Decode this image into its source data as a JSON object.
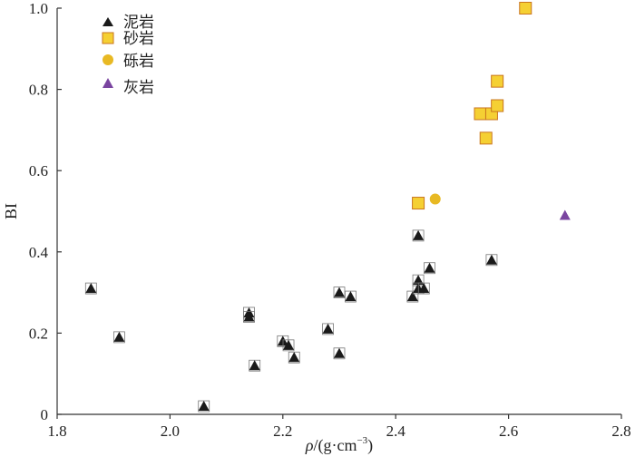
{
  "chart_data": {
    "type": "scatter",
    "title": "",
    "xlabel_main": "ρ",
    "xlabel_unit": "/(g·cm",
    "xlabel_exp": "−3",
    "xlabel_close": ")",
    "ylabel": "BI",
    "xlim": [
      1.8,
      2.8
    ],
    "ylim": [
      0,
      1.0
    ],
    "x_ticks": [
      "1.8",
      "2.0",
      "2.2",
      "2.4",
      "2.6",
      "2.8"
    ],
    "y_ticks": [
      "0",
      "0.2",
      "0.4",
      "0.6",
      "0.8",
      "1.0"
    ],
    "grid": false,
    "legend_position": "top-left",
    "series": [
      {
        "name": "泥岩",
        "marker": "triangle",
        "color": "#1a1a1a",
        "points": [
          [
            1.86,
            0.31
          ],
          [
            1.91,
            0.19
          ],
          [
            2.06,
            0.02
          ],
          [
            2.14,
            0.25
          ],
          [
            2.14,
            0.24
          ],
          [
            2.15,
            0.12
          ],
          [
            2.2,
            0.18
          ],
          [
            2.21,
            0.17
          ],
          [
            2.22,
            0.14
          ],
          [
            2.28,
            0.21
          ],
          [
            2.3,
            0.15
          ],
          [
            2.3,
            0.3
          ],
          [
            2.32,
            0.29
          ],
          [
            2.43,
            0.29
          ],
          [
            2.44,
            0.33
          ],
          [
            2.44,
            0.31
          ],
          [
            2.44,
            0.44
          ],
          [
            2.45,
            0.31
          ],
          [
            2.46,
            0.36
          ],
          [
            2.57,
            0.38
          ]
        ]
      },
      {
        "name": "砂岩",
        "marker": "square",
        "color": "#f5d033",
        "stroke": "#c9751e",
        "points": [
          [
            2.44,
            0.52
          ],
          [
            2.55,
            0.74
          ],
          [
            2.56,
            0.68
          ],
          [
            2.57,
            0.74
          ],
          [
            2.58,
            0.76
          ],
          [
            2.58,
            0.82
          ],
          [
            2.63,
            1.0
          ]
        ]
      },
      {
        "name": "砾岩",
        "marker": "circle",
        "color": "#e8b923",
        "points": [
          [
            2.47,
            0.53
          ]
        ]
      },
      {
        "name": "灰岩",
        "marker": "triangle",
        "color": "#7a45a0",
        "points": [
          [
            2.7,
            0.49
          ]
        ]
      }
    ]
  }
}
